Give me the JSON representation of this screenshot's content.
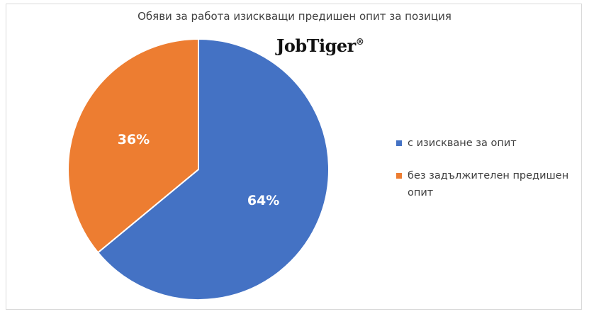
{
  "chart_data": {
    "type": "pie",
    "title": "Обяви за работа изискващи предишен опит за позиция",
    "categories": [
      "с изискване за опит",
      "без задължителен предишен опит"
    ],
    "values": [
      64,
      36
    ],
    "labels": [
      "64%",
      "36%"
    ],
    "colors": [
      "#4472C4",
      "#ED7D31"
    ],
    "legend_placement": "right"
  },
  "watermark": {
    "text": "JobTiger",
    "mark": "®"
  }
}
